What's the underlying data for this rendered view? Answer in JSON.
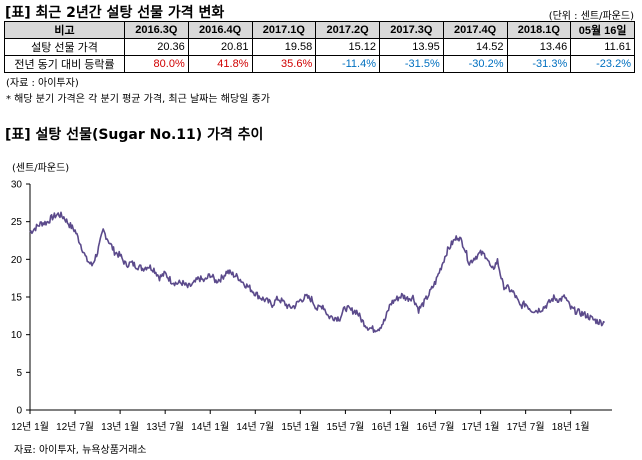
{
  "table_title": "[표] 최근 2년간 설탕 선물 가격 변화",
  "table_unit": "(단위 : 센트/파운드)",
  "table": {
    "header_label": "비고",
    "columns": [
      "2016.3Q",
      "2016.4Q",
      "2017.1Q",
      "2017.2Q",
      "2017.3Q",
      "2017.4Q",
      "2018.1Q",
      "05월 16일"
    ],
    "rows": [
      {
        "label": "설탕 선물 가격",
        "values": [
          "20.36",
          "20.81",
          "19.58",
          "15.12",
          "13.95",
          "14.52",
          "13.46",
          "11.61"
        ]
      },
      {
        "label": "전년 동기 대비 등락률",
        "values": [
          "80.0%",
          "41.8%",
          "35.6%",
          "-11.4%",
          "-31.5%",
          "-30.2%",
          "-31.3%",
          "-23.2%"
        ]
      }
    ]
  },
  "table_source": "(자료 : 아이투자)",
  "table_note": "* 해당 분기 가격은 각 분기 평균 가격, 최근 날짜는 해당일 종가",
  "chart_title": "[표] 설탕 선물(Sugar No.11) 가격 추이",
  "chart_source": "자료: 아이투자, 뉴욕상품거래소",
  "colors": {
    "line": "#5b4a8b",
    "positive": "#d00000",
    "negative": "#0070c0",
    "header_bg": "#d9d9d9"
  },
  "chart_data": {
    "type": "line",
    "title": "[표] 설탕 선물(Sugar No.11) 가격 추이",
    "ylabel": "(센트/파운드)",
    "xlabel": "",
    "ylim": [
      0,
      30
    ],
    "yticks": [
      0,
      5,
      10,
      15,
      20,
      25,
      30
    ],
    "xlim": [
      0,
      77.5
    ],
    "xticks": [
      {
        "pos": 0,
        "label": "12년 1월"
      },
      {
        "pos": 6,
        "label": "12년 7월"
      },
      {
        "pos": 12,
        "label": "13년 1월"
      },
      {
        "pos": 18,
        "label": "13년 7월"
      },
      {
        "pos": 24,
        "label": "14년 1월"
      },
      {
        "pos": 30,
        "label": "14년 7월"
      },
      {
        "pos": 36,
        "label": "15년 1월"
      },
      {
        "pos": 42,
        "label": "15년 7월"
      },
      {
        "pos": 48,
        "label": "16년 1월"
      },
      {
        "pos": 54,
        "label": "16년 7월"
      },
      {
        "pos": 60,
        "label": "17년 1월"
      },
      {
        "pos": 66,
        "label": "17년 7월"
      },
      {
        "pos": 72,
        "label": "18년 1월"
      }
    ],
    "grid": false,
    "series": [
      {
        "values": [
          23.6,
          24.2,
          24.8,
          24.9,
          25.6,
          26.0,
          25.6,
          24.6,
          23.8,
          22.0,
          20.0,
          19.2,
          21.0,
          23.8,
          22.4,
          21.0,
          20.5,
          19.3,
          19.5,
          19.1,
          18.8,
          19.1,
          18.7,
          17.6,
          18.1,
          17.2,
          16.8,
          16.9,
          16.3,
          16.7,
          17.5,
          17.1,
          18.0,
          17.1,
          17.5,
          18.4,
          18.0,
          17.6,
          16.8,
          16.2,
          15.5,
          14.9,
          14.5,
          14.0,
          14.8,
          14.3,
          13.6,
          13.8,
          14.6,
          15.0,
          14.7,
          13.4,
          13.9,
          12.4,
          12.3,
          12.2,
          13.6,
          13.2,
          13.1,
          11.8,
          11.0,
          10.7,
          10.9,
          11.9,
          14.1,
          14.7,
          15.2,
          14.8,
          15.0,
          13.3,
          14.3,
          15.6,
          17.0,
          19.0,
          21.0,
          22.2,
          23.1,
          21.9,
          19.5,
          20.3,
          20.8,
          20.5,
          18.5,
          19.8,
          16.5,
          16.1,
          15.4,
          13.8,
          14.1,
          13.3,
          13.2,
          13.5,
          14.1,
          14.9,
          14.6,
          15.0,
          13.5,
          13.1,
          12.8,
          12.5,
          12.0,
          11.7,
          11.6
        ]
      }
    ]
  }
}
